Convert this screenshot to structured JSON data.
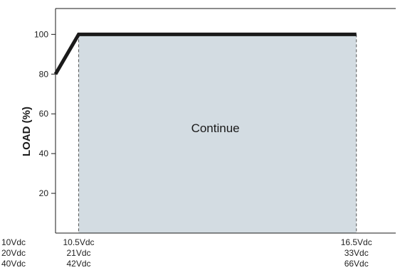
{
  "chart_data": {
    "type": "line",
    "title": "",
    "xlabel": "",
    "ylabel": "LOAD (%)",
    "ylim": [
      0,
      113
    ],
    "y_ticks": [
      20,
      40,
      60,
      80,
      100
    ],
    "x_ticks": [
      {
        "value": 10,
        "label_lines": [
          "10Vdc",
          "20Vdc",
          "40Vdc"
        ]
      },
      {
        "value": 10.5,
        "label_lines": [
          "10.5Vdc",
          "21Vdc",
          "42Vdc"
        ]
      },
      {
        "value": 16.5,
        "label_lines": [
          "16.5Vdc",
          "33Vdc",
          "66Vdc"
        ]
      }
    ],
    "xlim": [
      10,
      17.35
    ],
    "series": [
      {
        "points": [
          [
            10,
            80
          ],
          [
            10.5,
            100
          ],
          [
            16.5,
            100
          ]
        ]
      }
    ],
    "region": {
      "x_start": 10.5,
      "x_end": 16.5,
      "y_top": 100,
      "label": "Continue"
    },
    "grid": false,
    "colors": {
      "line": "#1a1a1a",
      "region_fill": "#d3dce2",
      "axis": "#1a1a1a"
    }
  }
}
